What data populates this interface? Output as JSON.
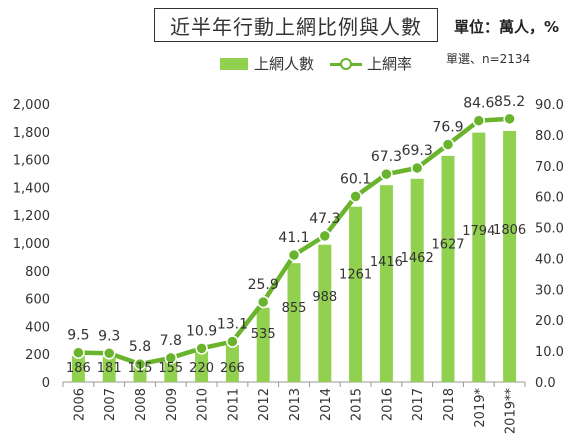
{
  "header": {
    "title": "近半年行動上網比例與人數",
    "unit": "單位：萬人，%",
    "sample": "單選、n=2134"
  },
  "legend": {
    "bar_label": "上網人數",
    "line_label": "上網率"
  },
  "colors": {
    "bar": "#92d050",
    "line": "#6ab42d",
    "axis": "#999999"
  },
  "chart_data": {
    "type": "bar",
    "title": "近半年行動上網比例與人數",
    "categories": [
      "2006",
      "2007",
      "2008",
      "2009",
      "2010",
      "2011",
      "2012",
      "2013",
      "2014",
      "2015",
      "2016",
      "2017",
      "2018",
      "2019*",
      "2019**"
    ],
    "series": [
      {
        "name": "上網人數",
        "type": "bar",
        "axis": "left",
        "values": [
          186,
          181,
          115,
          155,
          220,
          266,
          535,
          855,
          988,
          1261,
          1416,
          1462,
          1627,
          1794,
          1806
        ]
      },
      {
        "name": "上網率",
        "type": "line",
        "axis": "right",
        "values": [
          9.5,
          9.3,
          5.8,
          7.8,
          10.9,
          13.1,
          25.9,
          41.1,
          47.3,
          60.1,
          67.3,
          69.3,
          76.9,
          84.6,
          85.2
        ]
      }
    ],
    "y_left": {
      "ylim": [
        0,
        2000
      ],
      "ticks": [
        0,
        200,
        400,
        600,
        800,
        1000,
        1200,
        1400,
        1600,
        1800,
        2000
      ],
      "tick_labels": [
        "0",
        "200",
        "400",
        "600",
        "800",
        "1,000",
        "1,200",
        "1,400",
        "1,600",
        "1,800",
        "2,000"
      ]
    },
    "y_right": {
      "ylim": [
        0,
        90
      ],
      "ticks": [
        0,
        10,
        20,
        30,
        40,
        50,
        60,
        70,
        80,
        90
      ],
      "tick_labels": [
        "0.0",
        "10.0",
        "20.0",
        "30.0",
        "40.0",
        "50.0",
        "60.0",
        "70.0",
        "80.0",
        "90.0"
      ]
    },
    "grid": false,
    "legend_position": "top-center"
  }
}
